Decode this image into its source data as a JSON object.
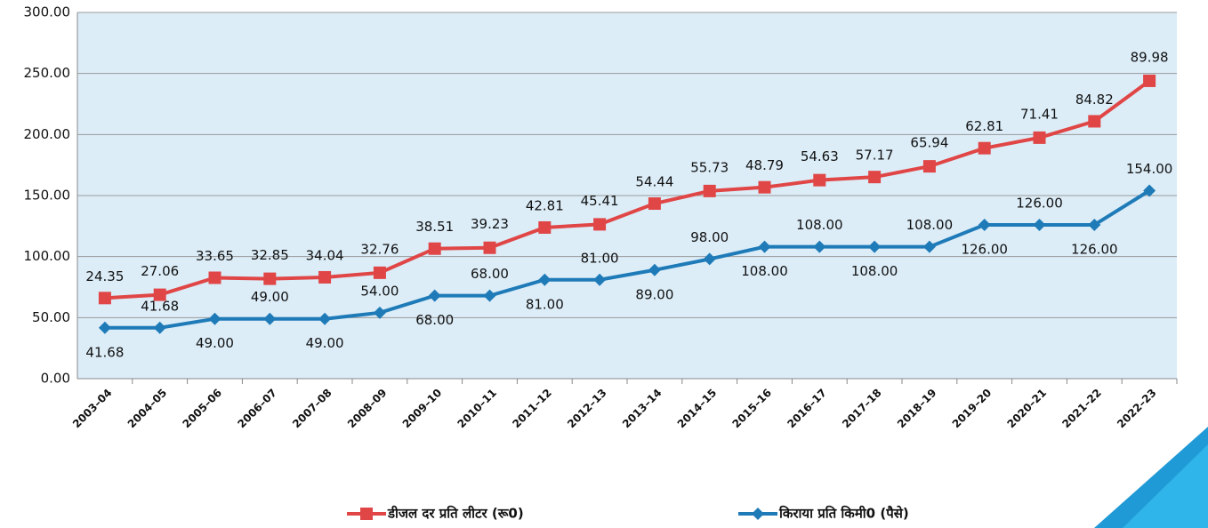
{
  "chart_data": {
    "type": "line",
    "stacked": true,
    "categories": [
      "2003–04",
      "2004–05",
      "2005–06",
      "2006–07",
      "2007–08",
      "2008–09",
      "2009–10",
      "2010–11",
      "2011–12",
      "2012–13",
      "2013–14",
      "2014–15",
      "2015–16",
      "2016–17",
      "2017–18",
      "2018–19",
      "2019–20",
      "2020–21",
      "2021–22",
      "2022–23"
    ],
    "series": [
      {
        "name": "किराया प्रति किमी0 (पैसे)",
        "color": "#1f7bb8",
        "marker": "diamond",
        "values": [
          41.68,
          41.68,
          49,
          49,
          49,
          54,
          68,
          68,
          81,
          81,
          89,
          98,
          108,
          108,
          108,
          108,
          126,
          126,
          126,
          154
        ],
        "value_labels": [
          "41.68",
          "41.68",
          "49.00",
          "49.00",
          "49.00",
          "54.00",
          "68.00",
          "68.00",
          "81.00",
          "81.00",
          "89.00",
          "98.00",
          "108.00",
          "108.00",
          "108.00",
          "108.00",
          "126.00",
          "126.00",
          "126.00",
          "154.00"
        ]
      },
      {
        "name": "डीजल दर प्रति लीटर (रू0)",
        "color": "#e04646",
        "marker": "square",
        "values": [
          24.35,
          27.06,
          33.65,
          32.85,
          34.04,
          32.76,
          38.51,
          39.23,
          42.81,
          45.41,
          54.44,
          55.73,
          48.79,
          54.63,
          57.17,
          65.94,
          62.81,
          71.41,
          84.82,
          89.98
        ],
        "value_labels": [
          "24.35",
          "27.06",
          "33.65",
          "32.85",
          "34.04",
          "32.76",
          "38.51",
          "39.23",
          "42.81",
          "45.41",
          "54.44",
          "55.73",
          "48.79",
          "54.63",
          "57.17",
          "65.94",
          "62.81",
          "71.41",
          "84.82",
          "89.98"
        ]
      }
    ],
    "ylim": [
      0,
      300
    ],
    "yticks": [
      {
        "value": 0,
        "label": "0.00"
      },
      {
        "value": 50,
        "label": "50.00"
      },
      {
        "value": 100,
        "label": "100.00"
      },
      {
        "value": 150,
        "label": "150.00"
      },
      {
        "value": 200,
        "label": "200.00"
      },
      {
        "value": 250,
        "label": "250.00"
      },
      {
        "value": 300,
        "label": "300.00"
      }
    ],
    "grid": true,
    "legend": "bottom"
  }
}
